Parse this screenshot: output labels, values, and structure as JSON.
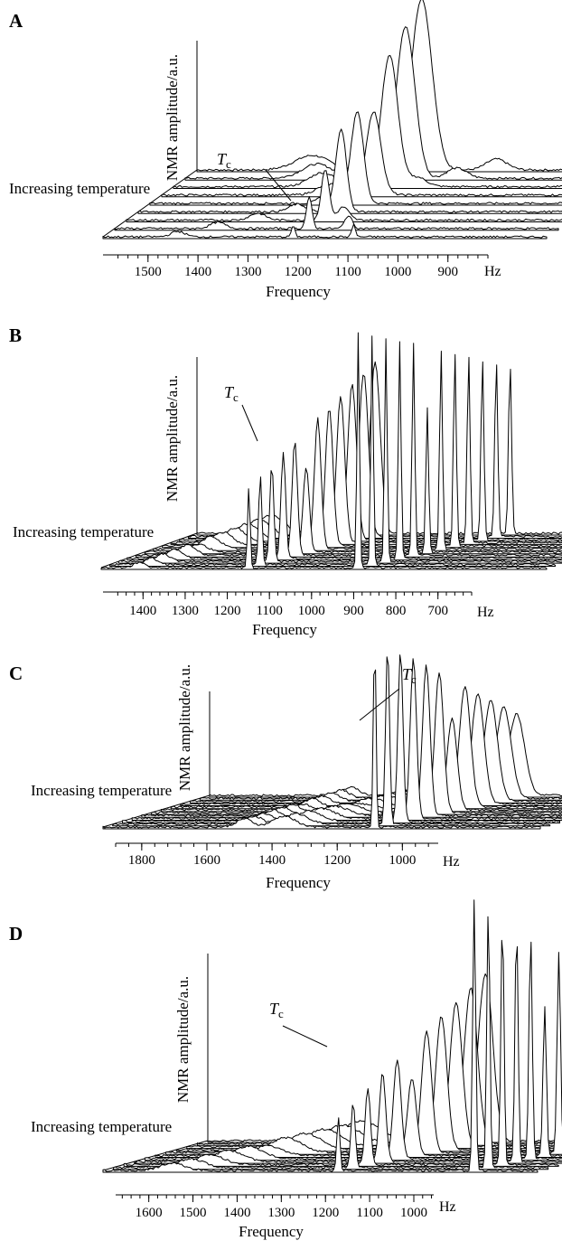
{
  "chart_data": [
    {
      "type": "line",
      "panel_label": "A",
      "xlabel": "Frequency",
      "x_unit": "Hz",
      "ylabel": "NMR amplitude/a.u.",
      "depth_label": "Increasing temperature",
      "annotation": {
        "main": "T",
        "sub": "c"
      },
      "x_ticks": [
        1500,
        1400,
        1300,
        1200,
        1100,
        1000,
        900
      ],
      "xlim": [
        1590,
        820
      ],
      "trace_count": 9,
      "tc_trace_index": 5,
      "peaks_first": [
        {
          "x": 1260,
          "h": 12,
          "w": 3
        },
        {
          "x": 1155,
          "h": 14,
          "w": 3
        },
        {
          "x": 1460,
          "h": 6,
          "w": 12
        }
      ],
      "peaks_last": [
        {
          "x": 1200,
          "h": 190,
          "w": 18
        },
        {
          "x": 1390,
          "h": 16,
          "w": 30
        },
        {
          "x": 1070,
          "h": 12,
          "w": 18
        }
      ]
    },
    {
      "type": "line",
      "panel_label": "B",
      "xlabel": "Frequency",
      "x_unit": "Hz",
      "ylabel": "NMR amplitude/a.u.",
      "depth_label": "Increasing temperature",
      "annotation": {
        "main": "T",
        "sub": "c"
      },
      "x_ticks": [
        1400,
        1300,
        1200,
        1100,
        1000,
        900,
        800,
        700
      ],
      "xlim": [
        1495,
        620
      ],
      "trace_count": 12,
      "tc_trace_index": 5,
      "peaks_first": [
        {
          "x": 1205,
          "h": 90,
          "w": 2.5
        },
        {
          "x": 990,
          "h": 260,
          "w": 2.5
        },
        {
          "x": 1420,
          "h": 6,
          "w": 10
        }
      ],
      "peaks_last": [
        {
          "x": 1145,
          "h": 190,
          "w": 10
        },
        {
          "x": 880,
          "h": 190,
          "w": 3
        },
        {
          "x": 1350,
          "h": 20,
          "w": 25
        }
      ]
    },
    {
      "type": "line",
      "panel_label": "C",
      "xlabel": "Frequency",
      "x_unit": "Hz",
      "ylabel": "NMR amplitude/a.u.",
      "depth_label": "Increasing temperature",
      "annotation": {
        "main": "T",
        "sub": "c"
      },
      "x_ticks": [
        1800,
        1600,
        1400,
        1200,
        1000
      ],
      "xlim": [
        1880,
        890
      ],
      "trace_count": 12,
      "tc_trace_index": 6,
      "peaks_first": [
        {
          "x": 1265,
          "h": 210,
          "w": 3
        },
        {
          "x": 1470,
          "h": 12,
          "w": 25
        },
        {
          "x": 1560,
          "h": 9,
          "w": 18
        }
      ],
      "peaks_last": [
        {
          "x": 1185,
          "h": 90,
          "w": 18
        },
        {
          "x": 1400,
          "h": 8,
          "w": 40
        }
      ]
    },
    {
      "type": "line",
      "panel_label": "D",
      "xlabel": "Frequency",
      "x_unit": "Hz",
      "ylabel": "NMR amplitude/a.u.",
      "depth_label": "Increasing temperature",
      "annotation": {
        "main": "T",
        "sub": "c"
      },
      "x_ticks": [
        1600,
        1500,
        1400,
        1300,
        1200,
        1100,
        1000
      ],
      "xlim": [
        1675,
        955
      ],
      "trace_count": 11,
      "tc_trace_index": 5,
      "peaks_first": [
        {
          "x": 1285,
          "h": 60,
          "w": 2.5
        },
        {
          "x": 1060,
          "h": 300,
          "w": 2.5
        },
        {
          "x": 1560,
          "h": 8,
          "w": 20
        }
      ],
      "peaks_last": [
        {
          "x": 1215,
          "h": 185,
          "w": 12
        },
        {
          "x": 1000,
          "h": 170,
          "w": 3
        },
        {
          "x": 1420,
          "h": 22,
          "w": 30
        }
      ]
    }
  ]
}
